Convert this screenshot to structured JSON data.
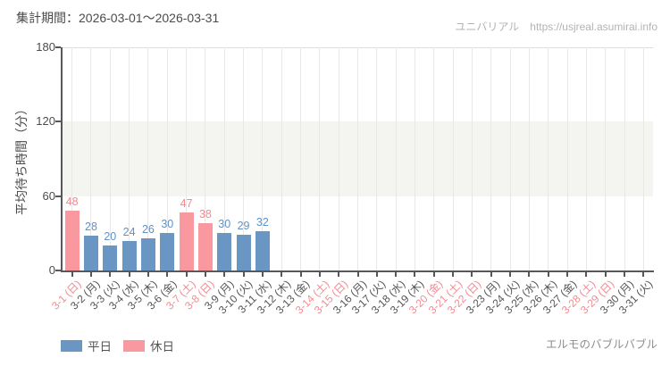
{
  "header": {
    "period_label": "集計期間：2026-03-01～2026-03-31"
  },
  "credit": {
    "site_name": "ユニバリアル",
    "site_url": "https://usjreal.asumirai.info"
  },
  "footer": {
    "attraction_name": "エルモのバブルバブル"
  },
  "chart_data": {
    "type": "bar",
    "title": "",
    "xlabel": "",
    "ylabel": "平均待ち時間（分）",
    "ylim": [
      0,
      180
    ],
    "yticks": [
      0,
      60,
      120,
      180
    ],
    "shaded_band": [
      60,
      120
    ],
    "grid": true,
    "legend_position": "bottom-left",
    "legend": [
      {
        "label": "平日",
        "key": "weekday"
      },
      {
        "label": "休日",
        "key": "holiday"
      }
    ],
    "colors": {
      "weekday": "#6a96c4",
      "holiday": "#f9989e",
      "weekday_text": "#6191c3",
      "holiday_text": "#f8878e",
      "date_default": "#545454",
      "date_holiday": "#f58b91"
    },
    "points": [
      {
        "label": "3-1 (日)",
        "holiday": true,
        "value": 48
      },
      {
        "label": "3-2 (月)",
        "holiday": false,
        "value": 28
      },
      {
        "label": "3-3 (火)",
        "holiday": false,
        "value": 20
      },
      {
        "label": "3-4 (水)",
        "holiday": false,
        "value": 24
      },
      {
        "label": "3-5 (木)",
        "holiday": false,
        "value": 26
      },
      {
        "label": "3-6 (金)",
        "holiday": false,
        "value": 30
      },
      {
        "label": "3-7 (土)",
        "holiday": true,
        "value": 47
      },
      {
        "label": "3-8 (日)",
        "holiday": true,
        "value": 38
      },
      {
        "label": "3-9 (月)",
        "holiday": false,
        "value": 30
      },
      {
        "label": "3-10 (火)",
        "holiday": false,
        "value": 29
      },
      {
        "label": "3-11 (水)",
        "holiday": false,
        "value": 32
      },
      {
        "label": "3-12 (木)",
        "holiday": false,
        "value": null
      },
      {
        "label": "3-13 (金)",
        "holiday": false,
        "value": null
      },
      {
        "label": "3-14 (土)",
        "holiday": true,
        "value": null
      },
      {
        "label": "3-15 (日)",
        "holiday": true,
        "value": null
      },
      {
        "label": "3-16 (月)",
        "holiday": false,
        "value": null
      },
      {
        "label": "3-17 (火)",
        "holiday": false,
        "value": null
      },
      {
        "label": "3-18 (水)",
        "holiday": false,
        "value": null
      },
      {
        "label": "3-19 (木)",
        "holiday": false,
        "value": null
      },
      {
        "label": "3-20 (金)",
        "holiday": true,
        "value": null
      },
      {
        "label": "3-21 (土)",
        "holiday": true,
        "value": null
      },
      {
        "label": "3-22 (日)",
        "holiday": true,
        "value": null
      },
      {
        "label": "3-23 (月)",
        "holiday": false,
        "value": null
      },
      {
        "label": "3-24 (火)",
        "holiday": false,
        "value": null
      },
      {
        "label": "3-25 (水)",
        "holiday": false,
        "value": null
      },
      {
        "label": "3-26 (木)",
        "holiday": false,
        "value": null
      },
      {
        "label": "3-27 (金)",
        "holiday": false,
        "value": null
      },
      {
        "label": "3-28 (土)",
        "holiday": true,
        "value": null
      },
      {
        "label": "3-29 (日)",
        "holiday": true,
        "value": null
      },
      {
        "label": "3-30 (月)",
        "holiday": false,
        "value": null
      },
      {
        "label": "3-31 (火)",
        "holiday": false,
        "value": null
      }
    ]
  }
}
